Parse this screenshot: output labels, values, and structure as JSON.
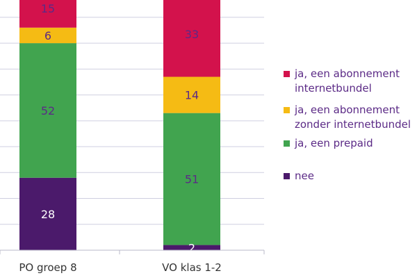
{
  "chart_data": {
    "type": "bar",
    "stacked": true,
    "categories": [
      "PO groep 8",
      "VO klas 1-2"
    ],
    "series": [
      {
        "name": "nee",
        "color": "#4b1a6b",
        "values": [
          28,
          2
        ]
      },
      {
        "name": "ja, een prepaid",
        "color": "#41a44f",
        "values": [
          52,
          51
        ]
      },
      {
        "name": "ja, een abonnement\nzonder internetbundel",
        "color": "#f5bb14",
        "values": [
          6,
          14
        ]
      },
      {
        "name": "ja, een abonnement\ninternetbundel",
        "color": "#d3124c",
        "values": [
          15,
          33
        ]
      }
    ],
    "ylim": [
      0,
      100
    ],
    "grid": true,
    "legend_position": "right",
    "label_color": "#5b2a86"
  }
}
